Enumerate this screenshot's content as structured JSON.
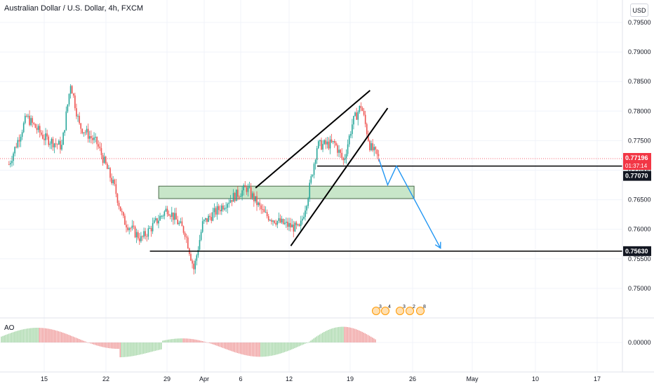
{
  "header": {
    "title": "Australian Dollar / U.S. Dollar, 4h, FXCM",
    "currency_button": "USD"
  },
  "indicator": {
    "name": "AO",
    "zero_label": "0.00000"
  },
  "price_scale": {
    "ticks": [
      "0.79500",
      "0.79000",
      "0.78500",
      "0.78000",
      "0.77500",
      "0.77000",
      "0.76500",
      "0.76000",
      "0.75500",
      "0.75000"
    ],
    "tick_values": [
      0.795,
      0.79,
      0.785,
      0.78,
      0.775,
      0.77,
      0.765,
      0.76,
      0.755,
      0.75
    ]
  },
  "price_badges": {
    "current_price": "0.77196",
    "countdown": "01:37:14",
    "support_level_1": "0.77070",
    "support_level_2": "0.75630"
  },
  "time_scale": {
    "labels": [
      "15",
      "22",
      "29",
      "Apr",
      "6",
      "12",
      "19",
      "26",
      "May",
      "10",
      "17"
    ]
  },
  "events": {
    "counts": [
      "3",
      "4",
      "3",
      "2",
      "8"
    ]
  },
  "colors": {
    "bull": "#26a69a",
    "bear": "#ef5350",
    "current_price": "#f23645",
    "ao_green": "#a5d6a7",
    "ao_red": "#ef9a9a",
    "zone_fill": "#c8e6c9",
    "projection": "#2196f3",
    "trendline": "#000000"
  },
  "chart_data": {
    "type": "candlestick",
    "symbol": "AUDUSD",
    "interval": "4h",
    "ylim": [
      0.7475,
      0.798
    ],
    "price_path": [
      {
        "x": "Mar 11",
        "y": 0.771
      },
      {
        "x": "Mar 13",
        "y": 0.779
      },
      {
        "x": "Mar 15",
        "y": 0.7755
      },
      {
        "x": "Mar 17",
        "y": 0.774
      },
      {
        "x": "Mar 18",
        "y": 0.7848
      },
      {
        "x": "Mar 19",
        "y": 0.7775
      },
      {
        "x": "Mar 21",
        "y": 0.7745
      },
      {
        "x": "Mar 23",
        "y": 0.767
      },
      {
        "x": "Mar 24",
        "y": 0.7615
      },
      {
        "x": "Mar 26",
        "y": 0.7583
      },
      {
        "x": "Mar 29",
        "y": 0.7635
      },
      {
        "x": "Mar 31",
        "y": 0.7595
      },
      {
        "x": "Apr 1",
        "y": 0.7532
      },
      {
        "x": "Apr 2",
        "y": 0.761
      },
      {
        "x": "Apr 5",
        "y": 0.765
      },
      {
        "x": "Apr 7",
        "y": 0.767
      },
      {
        "x": "Apr 9",
        "y": 0.7625
      },
      {
        "x": "Apr 11",
        "y": 0.761
      },
      {
        "x": "Apr 13",
        "y": 0.76
      },
      {
        "x": "Apr 14",
        "y": 0.766
      },
      {
        "x": "Apr 15",
        "y": 0.7742
      },
      {
        "x": "Apr 17",
        "y": 0.7745
      },
      {
        "x": "Apr 18",
        "y": 0.7715
      },
      {
        "x": "Apr 19",
        "y": 0.778
      },
      {
        "x": "Apr 20",
        "y": 0.781
      },
      {
        "x": "Apr 21",
        "y": 0.774
      },
      {
        "x": "Apr 22",
        "y": 0.772
      }
    ],
    "levels": [
      {
        "value": 0.7707,
        "label": "0.77070"
      },
      {
        "value": 0.7563,
        "label": "0.75630"
      }
    ],
    "current_price": 0.77196,
    "zone": {
      "from": 0.7652,
      "to": 0.7673,
      "start": "Mar 28",
      "end": "Apr 26"
    },
    "trendlines": [
      {
        "from": {
          "x": "Apr 8",
          "y": 0.767
        },
        "to": {
          "x": "Apr 21",
          "y": 0.7835
        }
      },
      {
        "from": {
          "x": "Apr 12",
          "y": 0.7572
        },
        "to": {
          "x": "Apr 23",
          "y": 0.7805
        }
      }
    ],
    "projection": [
      {
        "x": "Apr 22",
        "y": 0.7719
      },
      {
        "x": "Apr 23",
        "y": 0.7675
      },
      {
        "x": "Apr 24",
        "y": 0.7707
      },
      {
        "x": "Apr 29",
        "y": 0.7568
      }
    ]
  }
}
